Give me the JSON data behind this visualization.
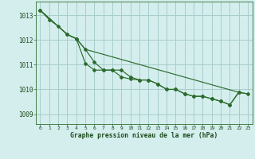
{
  "title": "Graphe pression niveau de la mer (hPa)",
  "bg_color": "#d4eeed",
  "grid_color": "#a8cccc",
  "line_color": "#2d6b2d",
  "ylim": [
    1008.6,
    1013.55
  ],
  "xlim": [
    -0.5,
    23.5
  ],
  "yticks": [
    1009,
    1010,
    1011,
    1012,
    1013
  ],
  "xticks": [
    0,
    1,
    2,
    3,
    4,
    5,
    6,
    7,
    8,
    9,
    10,
    11,
    12,
    13,
    14,
    15,
    16,
    17,
    18,
    19,
    20,
    21,
    22,
    23
  ],
  "line1_x": [
    0,
    1,
    2,
    3,
    4,
    5,
    6,
    7,
    8,
    9,
    10,
    11,
    12,
    13,
    14,
    15,
    16,
    17,
    18,
    19,
    20,
    21,
    22
  ],
  "line1_y": [
    1013.2,
    1012.82,
    1012.55,
    1012.22,
    1012.05,
    1011.05,
    1010.78,
    1010.78,
    1010.78,
    1010.5,
    1010.42,
    1010.38,
    1010.38,
    1010.22,
    1010.0,
    1010.0,
    1009.82,
    1009.72,
    1009.72,
    1009.62,
    1009.52,
    1009.38,
    1009.9
  ],
  "line2_x": [
    0,
    3,
    4,
    5,
    6,
    7,
    8,
    9,
    10,
    11,
    12,
    13,
    14,
    15,
    16,
    17,
    18,
    19,
    20,
    21,
    22,
    23
  ],
  "line2_y": [
    1013.2,
    1012.22,
    1012.05,
    1011.62,
    1011.1,
    1010.78,
    1010.78,
    1010.78,
    1010.5,
    1010.38,
    1010.38,
    1010.22,
    1010.0,
    1010.0,
    1009.82,
    1009.72,
    1009.72,
    1009.62,
    1009.52,
    1009.38,
    1009.88,
    1009.82
  ],
  "line3_x": [
    0,
    3,
    4,
    5,
    22,
    23
  ],
  "line3_y": [
    1013.2,
    1012.22,
    1012.05,
    1011.62,
    1009.88,
    1009.82
  ]
}
